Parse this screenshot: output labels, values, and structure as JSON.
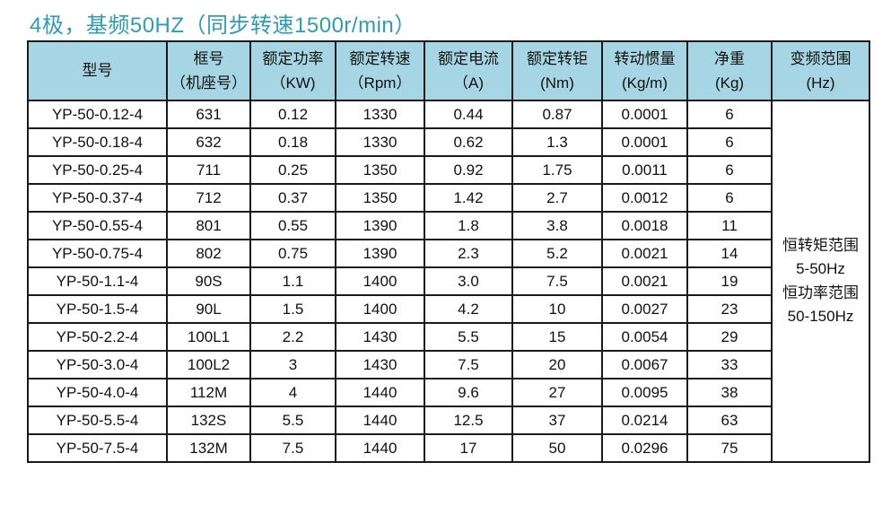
{
  "title": "4极，基频50HZ（同步转速1500r/min）",
  "colors": {
    "title_text": "#2d9cb4",
    "header_bg": "#a6d6e3",
    "border": "#1a1a1a",
    "cell_bg": "#ffffff",
    "cell_text": "#111111"
  },
  "table": {
    "headers": [
      {
        "line1": "型号",
        "line2": ""
      },
      {
        "line1": "框号",
        "line2": "（机座号）"
      },
      {
        "line1": "额定功率",
        "line2": "（KW)"
      },
      {
        "line1": "额定转速",
        "line2": "（Rpm）"
      },
      {
        "line1": "额定电流",
        "line2": "（A)"
      },
      {
        "line1": "额定转钜",
        "line2": "(Nm)"
      },
      {
        "line1": "转动惯量",
        "line2": "(Kg/m)"
      },
      {
        "line1": "净重",
        "line2": "(Kg)"
      },
      {
        "line1": "变频范围",
        "line2": "(Hz)"
      }
    ],
    "rows": [
      [
        "YP-50-0.12-4",
        "631",
        "0.12",
        "1330",
        "0.44",
        "0.87",
        "0.0001",
        "6"
      ],
      [
        "YP-50-0.18-4",
        "632",
        "0.18",
        "1330",
        "0.62",
        "1.3",
        "0.0001",
        "6"
      ],
      [
        "YP-50-0.25-4",
        "711",
        "0.25",
        "1350",
        "0.92",
        "1.75",
        "0.0011",
        "6"
      ],
      [
        "YP-50-0.37-4",
        "712",
        "0.37",
        "1350",
        "1.42",
        "2.7",
        "0.0012",
        "6"
      ],
      [
        "YP-50-0.55-4",
        "801",
        "0.55",
        "1390",
        "1.8",
        "3.8",
        "0.0018",
        "11"
      ],
      [
        "YP-50-0.75-4",
        "802",
        "0.75",
        "1390",
        "2.3",
        "5.2",
        "0.0021",
        "14"
      ],
      [
        "YP-50-1.1-4",
        "90S",
        "1.1",
        "1400",
        "3.0",
        "7.5",
        "0.0021",
        "19"
      ],
      [
        "YP-50-1.5-4",
        "90L",
        "1.5",
        "1400",
        "4.2",
        "10",
        "0.0027",
        "23"
      ],
      [
        "YP-50-2.2-4",
        "100L1",
        "2.2",
        "1430",
        "5.5",
        "15",
        "0.0054",
        "29"
      ],
      [
        "YP-50-3.0-4",
        "100L2",
        "3",
        "1430",
        "7.5",
        "20",
        "0.0067",
        "33"
      ],
      [
        "YP-50-4.0-4",
        "112M",
        "4",
        "1440",
        "9.6",
        "27",
        "0.0095",
        "38"
      ],
      [
        "YP-50-5.5-4",
        "132S",
        "5.5",
        "1440",
        "12.5",
        "37",
        "0.0214",
        "63"
      ],
      [
        "YP-50-7.5-4",
        "132M",
        "7.5",
        "1440",
        "17",
        "50",
        "0.0296",
        "75"
      ]
    ],
    "frequency_range_lines": [
      "恒转矩范围",
      "5-50Hz",
      "恒功率范围",
      "50-150Hz"
    ]
  }
}
